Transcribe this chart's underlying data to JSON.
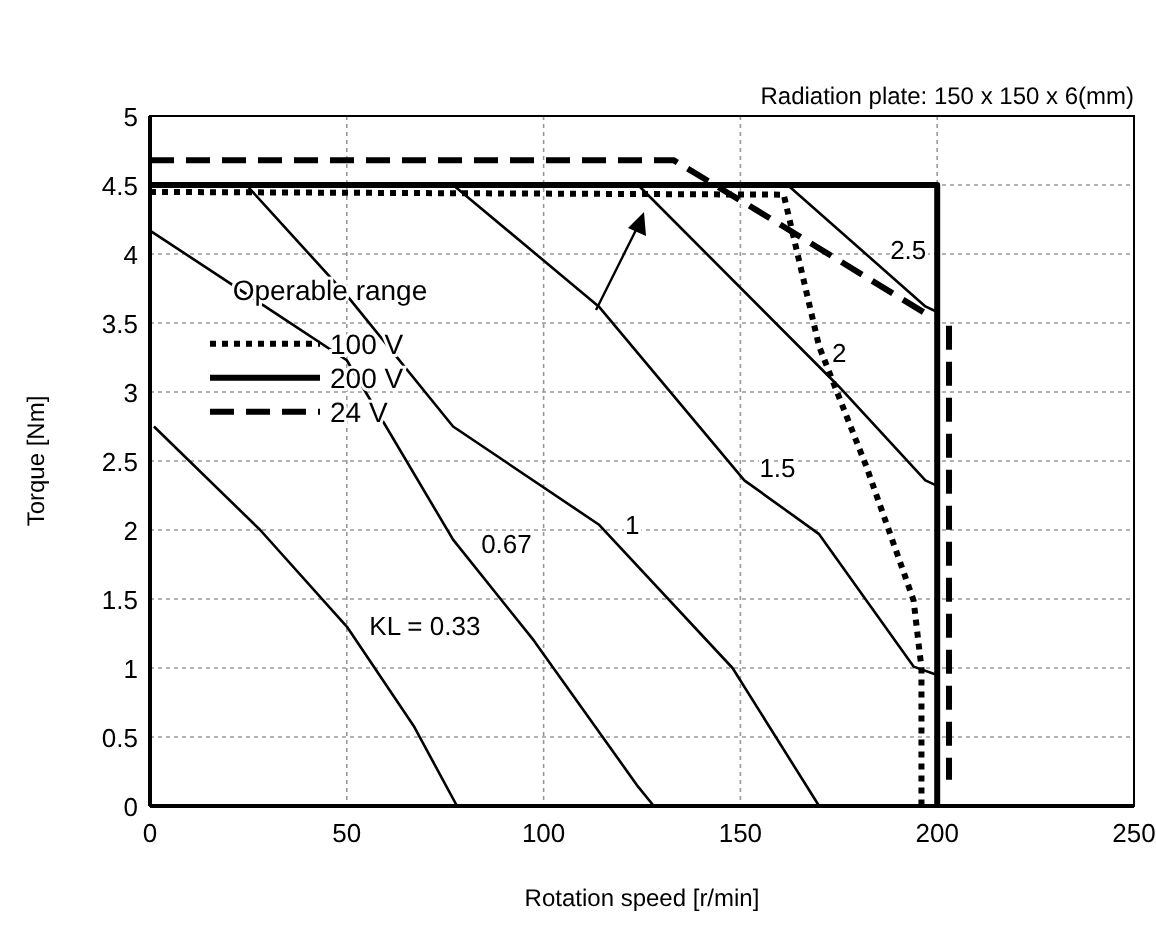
{
  "chart_data": {
    "type": "line",
    "xlabel": "Rotation speed [r/min]",
    "ylabel": "Torque [Nm]",
    "legend_title": "Operable range",
    "legend": "center left",
    "grid": true,
    "xlim": [
      0,
      250
    ],
    "xticks": [
      0,
      50,
      100,
      150,
      200,
      250
    ],
    "ylim": [
      0,
      5
    ],
    "yticks": [
      0,
      0.5,
      1,
      1.5,
      2,
      2.5,
      3,
      3.5,
      4,
      4.5,
      5
    ],
    "annotations": [
      "Radiation plate: 150 x 150 x 6(mm)"
    ],
    "series": [
      {
        "name": "100 V",
        "color": "#000000",
        "line_style": "dotted",
        "x": [
          0,
          161,
          170,
          182,
          194,
          196,
          196
        ],
        "values": [
          4.45,
          4.43,
          3.33,
          2.46,
          1.49,
          1.0,
          0
        ]
      },
      {
        "name": "200 V",
        "color": "#000000",
        "line_style": "solid",
        "x": [
          0,
          200,
          200
        ],
        "values": [
          4.5,
          4.5,
          0
        ]
      },
      {
        "name": "24 V",
        "color": "#000000",
        "line_style": "dashed",
        "x": [
          0,
          133,
          154,
          197,
          200,
          203,
          203
        ],
        "values": [
          4.68,
          4.68,
          4.32,
          3.57,
          null,
          3.48,
          0.19
        ]
      },
      {
        "name": "KL = 0.33",
        "color": "#000000",
        "line_style": "solid",
        "x": [
          1,
          28,
          50,
          67,
          78
        ],
        "values": [
          2.75,
          2.0,
          1.3,
          0.58,
          0
        ]
      },
      {
        "name": "0.67",
        "color": "#000000",
        "line_style": "solid",
        "x": [
          0,
          50,
          77,
          97.5,
          124,
          128
        ],
        "values": [
          4.17,
          3.23,
          1.93,
          1.2,
          0.14,
          0
        ]
      },
      {
        "name": "1",
        "color": "#000000",
        "line_style": "solid",
        "x": [
          24.5,
          50,
          77,
          114,
          148,
          170
        ],
        "values": [
          4.5,
          3.7,
          2.75,
          2.04,
          1.0,
          0
        ]
      },
      {
        "name": "1.5",
        "color": "#000000",
        "line_style": "solid",
        "x": [
          77,
          114,
          151,
          170,
          194,
          200
        ],
        "values": [
          4.5,
          3.62,
          2.36,
          1.97,
          1.01,
          0.95
        ]
      },
      {
        "name": "2",
        "color": "#000000",
        "line_style": "solid",
        "x": [
          124,
          175,
          197,
          200
        ],
        "values": [
          4.5,
          3.04,
          2.36,
          2.32
        ]
      },
      {
        "name": "2.5",
        "color": "#000000",
        "line_style": "solid",
        "x": [
          162,
          197,
          200
        ],
        "values": [
          4.5,
          3.62,
          3.58
        ]
      }
    ]
  }
}
